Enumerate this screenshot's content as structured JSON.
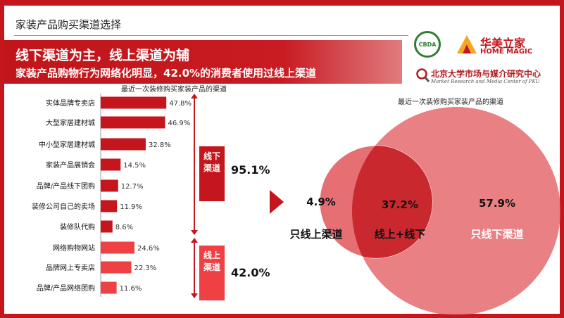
{
  "header": {
    "slide_title": "家装产品购买渠道选择",
    "headline": "线下渠道为主，线上渠道为辅",
    "subheadline": "家装产品购物行为网络化明显，42.0%的消费者使用过线上渠道"
  },
  "logos": {
    "cbda": "CBDA",
    "homemagic_cn": "华美立家",
    "homemagic_en": "HOME MAGIC",
    "pku_cn": "北京大学市场与媒介研究中心",
    "pku_en": "Market Research and Media Center of PKU"
  },
  "groups": {
    "offline": {
      "label": "线下渠道",
      "total": "95.1%"
    },
    "online": {
      "label": "线上渠道",
      "total": "42.0%"
    }
  },
  "colors": {
    "brand_red": "#c4161c",
    "offline_bar": "#c4161c",
    "online_bar": "#ef4044",
    "venn_circle": "#e0565b",
    "venn_overlap": "#c9282e"
  },
  "chart_data": [
    {
      "type": "bar",
      "orientation": "horizontal",
      "title": "最近一次装修购买家装产品的渠道",
      "categories": [
        "实体品牌专卖店",
        "大型家居建材城",
        "中小型家居建材城",
        "家装产品展销会",
        "品牌/产品线下团购",
        "装修公司自己的卖场",
        "装修队代购",
        "网络购物网站",
        "品牌网上专卖店",
        "品牌/产品网络团购"
      ],
      "values": [
        47.8,
        46.9,
        32.8,
        14.5,
        12.7,
        11.9,
        8.6,
        24.6,
        22.3,
        11.6
      ],
      "value_labels": [
        "47.8%",
        "46.9%",
        "32.8%",
        "14.5%",
        "12.7%",
        "11.9%",
        "8.6%",
        "24.6%",
        "22.3%",
        "11.6%"
      ],
      "group": [
        "offline",
        "offline",
        "offline",
        "offline",
        "offline",
        "offline",
        "offline",
        "online",
        "online",
        "online"
      ]
    },
    {
      "type": "venn",
      "title": "最近一次装修购买家装产品的渠道",
      "regions": [
        {
          "label": "只线上渠道",
          "value": 4.9,
          "value_label": "4.9%"
        },
        {
          "label": "线上+线下",
          "value": 37.2,
          "value_label": "37.2%"
        },
        {
          "label": "只线下渠道",
          "value": 57.9,
          "value_label": "57.9%"
        }
      ]
    }
  ]
}
